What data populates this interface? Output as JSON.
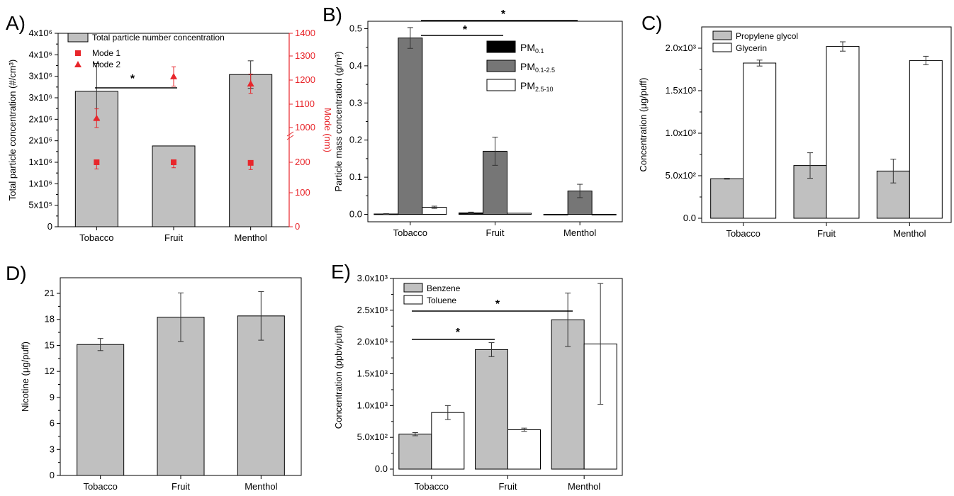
{
  "chart_data": [
    {
      "panel": "A)",
      "type": "bar",
      "categories": [
        "Tobacco",
        "Fruit",
        "Menthol"
      ],
      "series": [
        {
          "name": "Total particle number concentration",
          "values": [
            3150000,
            1880000,
            3540000
          ],
          "errors": [
            650000,
            0,
            320000
          ]
        }
      ],
      "secondary_series": [
        {
          "name": "Mode 1",
          "values": [
            200,
            200,
            198
          ],
          "errors": [
            22,
            18,
            22
          ]
        },
        {
          "name": "Mode 2",
          "values": [
            1040,
            1215,
            1185
          ],
          "errors": [
            40,
            40,
            40
          ]
        }
      ],
      "ylabel": "Total particle concentration (#/cm³)",
      "ylabel2": "Mode (nm)",
      "ylim": [
        0,
        4500000
      ],
      "yticks": [
        "0",
        "5x10⁵",
        "1x10⁶",
        "1x10⁶",
        "2x10⁶",
        "2x10⁶",
        "3x10⁶",
        "3x10⁶",
        "4x10⁶",
        "4x10⁶"
      ],
      "y2ticks": [
        "0",
        "100",
        "200",
        "1000",
        "1100",
        "1200",
        "1300",
        "1400"
      ],
      "annotations": [
        "*"
      ]
    },
    {
      "panel": "B)",
      "type": "bar",
      "categories": [
        "Tobacco",
        "Fruit",
        "Menthol"
      ],
      "series": [
        {
          "name": "PM0.1",
          "values": [
            0.001,
            0.004,
            0.0
          ],
          "errors": [
            0.001,
            0.002,
            0.0
          ]
        },
        {
          "name": "PM0.1-2.5",
          "values": [
            0.475,
            0.17,
            0.063
          ],
          "errors": [
            0.028,
            0.038,
            0.018
          ]
        },
        {
          "name": "PM2.5-10",
          "values": [
            0.019,
            0.003,
            0.0
          ],
          "errors": [
            0.003,
            0.0,
            0.0
          ]
        }
      ],
      "ylabel": "Particle mass concentration (g/m³)",
      "ylim": [
        -0.02,
        0.52
      ],
      "yticks": [
        "0.0",
        "0.1",
        "0.2",
        "0.3",
        "0.4",
        "0.5"
      ],
      "annotations": [
        "*",
        "*"
      ]
    },
    {
      "panel": "C)",
      "type": "bar",
      "categories": [
        "Tobacco",
        "Fruit",
        "Menthol"
      ],
      "series": [
        {
          "name": "Propylene glycol",
          "values": [
            465,
            620,
            555
          ],
          "errors": [
            5,
            150,
            140
          ]
        },
        {
          "name": "Glycerin",
          "values": [
            1825,
            2020,
            1855
          ],
          "errors": [
            35,
            55,
            50
          ]
        }
      ],
      "ylabel": "Concentration (μg/puff)",
      "ylim": [
        -50,
        2250
      ],
      "yticks": [
        "0.0",
        "5.0x10²",
        "1.0x10³",
        "1.5x10³",
        "2.0x10³"
      ]
    },
    {
      "panel": "D)",
      "type": "bar",
      "categories": [
        "Tobacco",
        "Fruit",
        "Menthol"
      ],
      "series": [
        {
          "name": "",
          "values": [
            15.1,
            18.25,
            18.4
          ],
          "errors": [
            0.7,
            2.8,
            2.8
          ]
        }
      ],
      "ylabel": "Nicotine (μg/puff)",
      "ylim": [
        0,
        22.8
      ],
      "yticks": [
        "0",
        "3",
        "6",
        "9",
        "12",
        "15",
        "18",
        "21"
      ]
    },
    {
      "panel": "E)",
      "type": "bar",
      "categories": [
        "Tobacco",
        "Fruit",
        "Menthol"
      ],
      "series": [
        {
          "name": "Benzene",
          "values": [
            550,
            1880,
            2350
          ],
          "errors": [
            25,
            110,
            420
          ]
        },
        {
          "name": "Toluene",
          "values": [
            890,
            620,
            1970
          ],
          "errors": [
            110,
            25,
            950
          ]
        }
      ],
      "ylabel": "Concentration (ppbv/puff)",
      "ylim": [
        -100,
        3000
      ],
      "yticks": [
        "0.0",
        "5.0x10²",
        "1.0x10³",
        "1.5x10³",
        "2.0x10³",
        "2.5x10³",
        "3.0x10³"
      ],
      "annotations": [
        "*",
        "*"
      ]
    }
  ]
}
